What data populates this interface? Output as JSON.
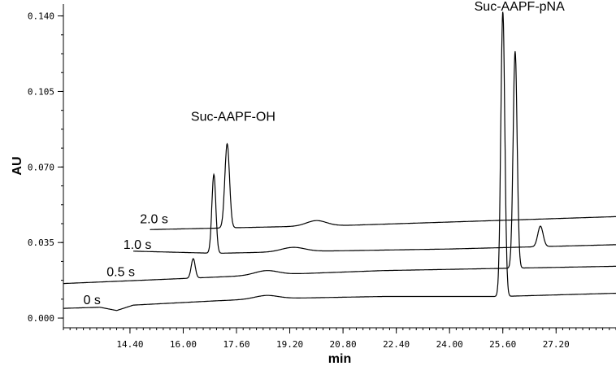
{
  "chart_data": {
    "type": "line",
    "title": "",
    "xlabel": "min",
    "ylabel": "AU",
    "xlim": [
      12.4,
      29.0
    ],
    "ylim": [
      -0.0045,
      0.1455
    ],
    "x_ticks": [
      {
        "value": 14.4,
        "label": "14.40"
      },
      {
        "value": 16.0,
        "label": "16.00"
      },
      {
        "value": 17.6,
        "label": "17.60"
      },
      {
        "value": 19.2,
        "label": "19.20"
      },
      {
        "value": 20.8,
        "label": "20.80"
      },
      {
        "value": 22.4,
        "label": "22.40"
      },
      {
        "value": 24.0,
        "label": "24.00"
      },
      {
        "value": 25.6,
        "label": "25.60"
      },
      {
        "value": 27.2,
        "label": "27.20"
      }
    ],
    "y_ticks": [
      {
        "value": 0.0,
        "label": "0.000"
      },
      {
        "value": 0.035,
        "label": "0.035"
      },
      {
        "value": 0.07,
        "label": "0.070"
      },
      {
        "value": 0.105,
        "label": "0.105"
      },
      {
        "value": 0.14,
        "label": "0.140"
      }
    ],
    "grid": false,
    "annotations": [
      {
        "text": "Suc-AAPF-OH",
        "x": 17.5,
        "y": 0.0915
      },
      {
        "text": "Suc-AAPF-pNA",
        "x": 26.1,
        "y": 0.1425
      }
    ],
    "series": [
      {
        "name": "0 s",
        "label_x": 13.0,
        "label_y": 0.0065,
        "baseline": [
          [
            12.4,
            0.0045
          ],
          [
            13.5,
            0.005
          ],
          [
            14.0,
            0.0035
          ],
          [
            14.5,
            0.006
          ],
          [
            17.0,
            0.008
          ],
          [
            18.5,
            0.009
          ],
          [
            22.0,
            0.01
          ],
          [
            25.5,
            0.01
          ],
          [
            29.0,
            0.0115
          ]
        ],
        "bumps": [
          [
            18.5,
            0.0015,
            0.35
          ]
        ],
        "peaks": [
          [
            25.6,
            0.132,
            0.06
          ]
        ]
      },
      {
        "name": "0.5 s",
        "label_x": 13.7,
        "label_y": 0.0195,
        "baseline": [
          [
            12.4,
            0.016
          ],
          [
            15.5,
            0.018
          ],
          [
            18.5,
            0.02
          ],
          [
            22.0,
            0.022
          ],
          [
            29.0,
            0.024
          ]
        ],
        "bumps": [
          [
            18.5,
            0.002,
            0.35
          ]
        ],
        "peaks": [
          [
            16.3,
            0.009,
            0.06
          ],
          [
            25.97,
            0.1005,
            0.06
          ]
        ]
      },
      {
        "name": "1.0 s",
        "label_x": 14.2,
        "label_y": 0.032,
        "baseline": [
          [
            14.5,
            0.031
          ],
          [
            17.0,
            0.03
          ],
          [
            20.0,
            0.031
          ],
          [
            24.0,
            0.032
          ],
          [
            29.0,
            0.034
          ]
        ],
        "bumps": [
          [
            19.3,
            0.002,
            0.35
          ]
        ],
        "peaks": [
          [
            16.92,
            0.0365,
            0.06
          ],
          [
            26.73,
            0.0095,
            0.08
          ]
        ]
      },
      {
        "name": "2.0 s",
        "label_x": 14.7,
        "label_y": 0.044,
        "baseline": [
          [
            15.0,
            0.041
          ],
          [
            18.0,
            0.042
          ],
          [
            21.0,
            0.043
          ],
          [
            25.0,
            0.045
          ],
          [
            29.0,
            0.047
          ]
        ],
        "bumps": [
          [
            20.0,
            0.0025,
            0.3
          ]
        ],
        "peaks": [
          [
            17.32,
            0.039,
            0.07
          ]
        ]
      }
    ]
  }
}
